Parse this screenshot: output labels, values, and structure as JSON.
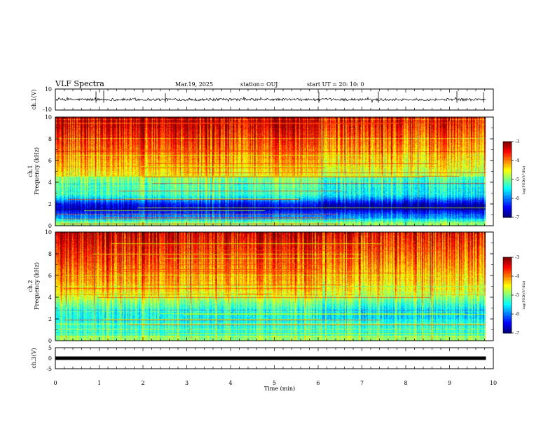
{
  "header": {
    "title": "VLF Spectra",
    "date": "Mar.19, 2025",
    "station": "station= OUJ",
    "start": "start UT =   20: 10: 0"
  },
  "chart_data": [
    {
      "type": "line",
      "panel": "ch1-waveform",
      "ylabel": "ch.1(V)",
      "ylim": [
        -10,
        10
      ],
      "y_ticks": [
        "10",
        "-10"
      ],
      "trace_level": 0,
      "trace_noise": 1.2,
      "color": "#000000"
    },
    {
      "type": "heatmap",
      "panel": "ch1-spectrogram",
      "ylabel": "Frequency (kHz)",
      "channel_label": "ch.1",
      "ylim": [
        0,
        10
      ],
      "y_ticks": [
        "0",
        "2",
        "4",
        "6",
        "8",
        "10"
      ],
      "colorbar": {
        "ticks": [
          "-3",
          "-4",
          "-5",
          "-6",
          "-7"
        ],
        "label": "log(PSD)(V²/Hz)",
        "range": [
          -7,
          -3
        ]
      }
    },
    {
      "type": "heatmap",
      "panel": "ch2-spectrogram",
      "ylabel": "Frequency (kHz)",
      "channel_label": "ch.2",
      "ylim": [
        0,
        10
      ],
      "y_ticks": [
        "0",
        "2",
        "4",
        "6",
        "8",
        "10"
      ],
      "colorbar": {
        "ticks": [
          "-3",
          "-4",
          "-5",
          "-6",
          "-7"
        ],
        "label": "log(PSD)(V²/Hz)",
        "range": [
          -7,
          -3
        ]
      }
    },
    {
      "type": "line",
      "panel": "ch3-waveform",
      "ylabel": "ch.3(V)",
      "ylim": [
        -5,
        5
      ],
      "y_ticks": [
        "5",
        "0",
        "-5"
      ],
      "trace_level": 0,
      "color": "#000000"
    }
  ],
  "x_axis": {
    "label": "Time (min)",
    "ticks": [
      "0",
      "1",
      "2",
      "3",
      "4",
      "5",
      "6",
      "7",
      "8",
      "9",
      "10"
    ],
    "xlim": [
      0,
      10
    ],
    "data_end": 9.83
  },
  "colors": {
    "colormap": [
      "#00007f",
      "#0000ff",
      "#007fff",
      "#00ffff",
      "#7fff7f",
      "#ffff00",
      "#ff7f00",
      "#ff0000",
      "#7f0000"
    ]
  }
}
